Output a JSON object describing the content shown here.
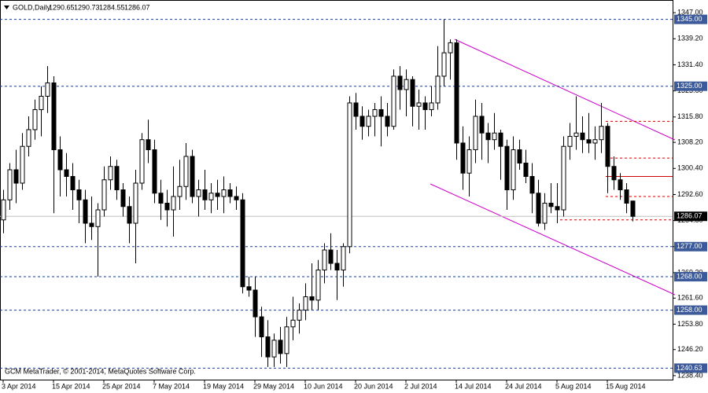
{
  "chart_data": {
    "type": "candlestick",
    "title": "GOLD,Daily",
    "footer": "GCM MetaTrader, © 2001-2014, MetaQuotes Software Corp.",
    "categories": [
      "3 Apr 2014",
      null,
      null,
      null,
      null,
      null,
      null,
      null,
      "15 Apr 2014",
      null,
      null,
      null,
      null,
      null,
      null,
      null,
      "25 Apr 2014",
      null,
      null,
      null,
      null,
      null,
      null,
      null,
      "7 May 2014",
      null,
      null,
      null,
      null,
      null,
      null,
      null,
      "19 May 2014",
      null,
      null,
      null,
      null,
      null,
      null,
      null,
      "29 May 2014",
      null,
      null,
      null,
      null,
      null,
      null,
      null,
      "10 Jun 2014",
      null,
      null,
      null,
      null,
      null,
      null,
      null,
      "20 Jun 2014",
      null,
      null,
      null,
      null,
      null,
      null,
      null,
      "2 Jul 2014",
      null,
      null,
      null,
      null,
      null,
      null,
      null,
      "14 Jul 2014",
      null,
      null,
      null,
      null,
      null,
      null,
      null,
      "24 Jul 2014",
      null,
      null,
      null,
      null,
      null,
      null,
      null,
      "5 Aug 2014",
      null,
      null,
      null,
      null,
      null,
      null,
      null,
      "15 Aug 2014",
      null,
      null,
      null,
      null
    ],
    "open": [
      1285,
      1291,
      1300,
      1296,
      1307,
      1312,
      1318,
      1322,
      1326,
      1306,
      1300,
      1298,
      1294,
      1291,
      1284,
      1283,
      1288,
      1297,
      1301,
      1294,
      1289,
      1284,
      1296,
      1309,
      1306,
      1293,
      1290,
      1288,
      1292,
      1295,
      1304,
      1292,
      1294,
      1291,
      1293,
      1292,
      1294,
      1292,
      1291,
      1265,
      1264,
      1256,
      1250,
      1244,
      1249,
      1245,
      1253,
      1255,
      1258,
      1262,
      1261,
      1270,
      1276,
      1272,
      1270,
      1277,
      1320,
      1316,
      1313,
      1316,
      1318,
      1316,
      1313,
      1328,
      1324,
      1327,
      1319,
      1320,
      1318,
      1320,
      1328,
      1335,
      1338,
      1308,
      1299,
      1306,
      1316,
      1311,
      1309,
      1311,
      1307,
      1294,
      1306,
      1302,
      1298,
      1293,
      1284,
      1290,
      1289,
      1288,
      1307,
      1310,
      1311,
      1309,
      1308,
      1309,
      1313,
      1301,
      1297,
      1294,
      1290.65
    ],
    "high": [
      1294,
      1302,
      1306,
      1311,
      1316,
      1321,
      1325,
      1331,
      1328,
      1310,
      1305,
      1302,
      1297,
      1294,
      1292,
      1290,
      1301,
      1304,
      1303,
      1296,
      1292,
      1300,
      1311,
      1315,
      1309,
      1297,
      1294,
      1301,
      1303,
      1308,
      1306,
      1297,
      1300,
      1296,
      1297,
      1298,
      1296,
      1295,
      1293,
      1268,
      1268,
      1259,
      1255,
      1251,
      1253,
      1256,
      1262,
      1260,
      1266,
      1272,
      1273,
      1278,
      1281,
      1276,
      1278,
      1322,
      1323,
      1319,
      1318,
      1320,
      1322,
      1320,
      1330,
      1331,
      1330,
      1328,
      1324,
      1322,
      1325,
      1337,
      1345,
      1339,
      1339,
      1313,
      1310,
      1321,
      1320,
      1314,
      1317,
      1312,
      1309,
      1310,
      1309,
      1306,
      1302,
      1297,
      1293,
      1296,
      1296,
      1310,
      1314,
      1322,
      1316,
      1317,
      1313,
      1320,
      1314,
      1304,
      1299,
      1296,
      1290.73
    ],
    "low": [
      1281,
      1288,
      1290,
      1294,
      1304,
      1309,
      1310,
      1317,
      1287,
      1292,
      1292,
      1288,
      1284,
      1278,
      1279,
      1268,
      1286,
      1294,
      1291,
      1286,
      1278,
      1272,
      1294,
      1302,
      1290,
      1285,
      1283,
      1280,
      1288,
      1291,
      1290,
      1286,
      1288,
      1287,
      1288,
      1287,
      1290,
      1288,
      1263,
      1262,
      1250,
      1244,
      1241,
      1241,
      1242,
      1241,
      1249,
      1251,
      1255,
      1258,
      1258,
      1266,
      1270,
      1261,
      1265,
      1275,
      1312,
      1309,
      1310,
      1310,
      1307,
      1310,
      1312,
      1318,
      1316,
      1313,
      1312,
      1312,
      1316,
      1318,
      1325,
      1327,
      1303,
      1294,
      1292,
      1302,
      1303,
      1302,
      1306,
      1297,
      1288,
      1291,
      1300,
      1296,
      1287,
      1283,
      1282,
      1287,
      1284,
      1286,
      1303,
      1306,
      1305,
      1305,
      1303,
      1305,
      1293,
      1294,
      1291,
      1287,
      1284.55
    ],
    "close": [
      1291,
      1300,
      1296,
      1307,
      1312,
      1318,
      1322,
      1326,
      1306,
      1300,
      1298,
      1294,
      1291,
      1284,
      1283,
      1288,
      1297,
      1301,
      1294,
      1289,
      1284,
      1296,
      1309,
      1306,
      1293,
      1290,
      1288,
      1292,
      1295,
      1304,
      1292,
      1294,
      1291,
      1293,
      1292,
      1294,
      1292,
      1291,
      1265,
      1264,
      1256,
      1250,
      1244,
      1249,
      1245,
      1253,
      1255,
      1258,
      1262,
      1261,
      1270,
      1276,
      1272,
      1270,
      1277,
      1320,
      1316,
      1313,
      1316,
      1318,
      1316,
      1313,
      1328,
      1324,
      1327,
      1319,
      1320,
      1318,
      1320,
      1328,
      1335,
      1338,
      1308,
      1299,
      1306,
      1316,
      1311,
      1309,
      1311,
      1307,
      1294,
      1306,
      1302,
      1298,
      1293,
      1284,
      1290,
      1289,
      1288,
      1307,
      1310,
      1311,
      1309,
      1308,
      1309,
      1313,
      1301,
      1297,
      1294,
      1290,
      1286.07
    ],
    "ylim": [
      1237.2,
      1350.8
    ],
    "yticks": [
      {
        "value": 1347,
        "label": "1347.00"
      },
      {
        "value": 1339.2,
        "label": "1339.20"
      },
      {
        "value": 1331.4,
        "label": "1331.40"
      },
      {
        "value": 1323.6,
        "label": "1323.60"
      },
      {
        "value": 1315.8,
        "label": "1315.80"
      },
      {
        "value": 1308.2,
        "label": "1308.20"
      },
      {
        "value": 1300.4,
        "label": "1300.40"
      },
      {
        "value": 1292.6,
        "label": "1292.60"
      },
      {
        "value": 1284.8,
        "label": "1284.80"
      },
      {
        "value": 1277,
        "label": "1277.00"
      },
      {
        "value": 1269.2,
        "label": "1269.20"
      },
      {
        "value": 1261.6,
        "label": "1261.60"
      },
      {
        "value": 1253.8,
        "label": "1253.80"
      },
      {
        "value": 1246.2,
        "label": "1246.20"
      },
      {
        "value": 1238.4,
        "label": "1238.40"
      }
    ],
    "levels": [
      {
        "value": 1345,
        "label": "1345.00"
      },
      {
        "value": 1325,
        "label": "1325.00"
      },
      {
        "value": 1277,
        "label": "1277.00"
      },
      {
        "value": 1268,
        "label": "1268.00"
      },
      {
        "value": 1258,
        "label": "1258.00"
      },
      {
        "value": 1240.63,
        "label": "1240.63"
      }
    ],
    "red_levels": [
      1314.5,
      1303.5,
      1298,
      1292,
      1285
    ],
    "level_color": "#1e3c96",
    "red_color": "#cc0000"
  }
}
